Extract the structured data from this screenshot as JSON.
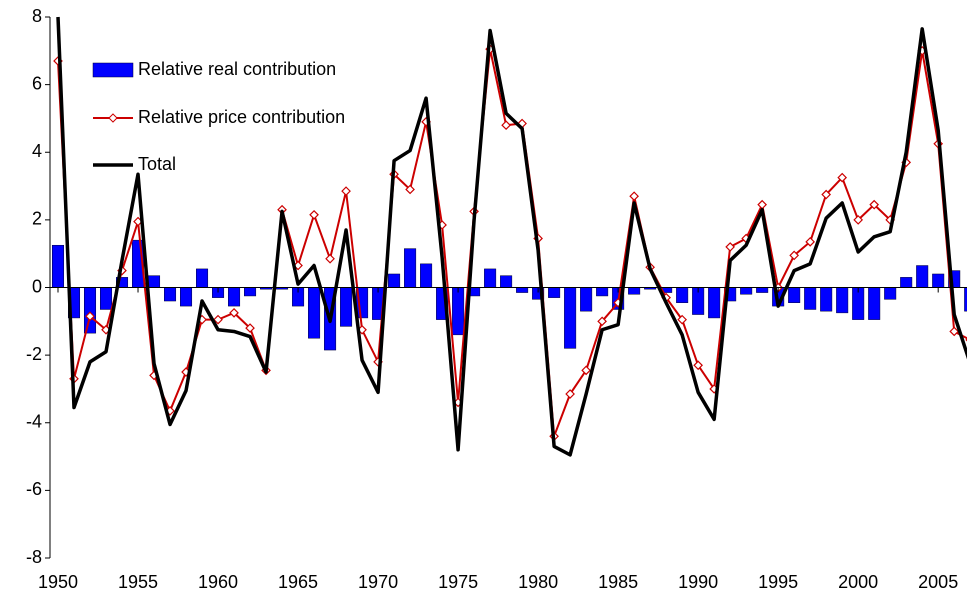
{
  "chart_data": {
    "type": "bar_line",
    "x": [
      1950,
      1951,
      1952,
      1953,
      1954,
      1955,
      1956,
      1957,
      1958,
      1959,
      1960,
      1961,
      1962,
      1963,
      1964,
      1965,
      1966,
      1967,
      1968,
      1969,
      1970,
      1971,
      1972,
      1973,
      1974,
      1975,
      1976,
      1977,
      1978,
      1979,
      1980,
      1981,
      1982,
      1983,
      1984,
      1985,
      1986,
      1987,
      1988,
      1989,
      1990,
      1991,
      1992,
      1993,
      1994,
      1995,
      1996,
      1997,
      1998,
      1999,
      2000,
      2001,
      2002,
      2003,
      2004,
      2005,
      2006,
      2007
    ],
    "series": [
      {
        "name": "Relative real contribution",
        "kind": "bar",
        "color": "#0000ff",
        "values": [
          1.25,
          -0.9,
          -1.35,
          -0.65,
          0.3,
          1.4,
          0.35,
          -0.4,
          -0.55,
          0.55,
          -0.3,
          -0.55,
          -0.25,
          -0.05,
          -0.05,
          -0.55,
          -1.5,
          -1.85,
          -1.15,
          -0.9,
          -0.95,
          0.4,
          1.15,
          0.7,
          -0.95,
          -1.4,
          -0.25,
          0.55,
          0.35,
          -0.15,
          -0.35,
          -0.3,
          -1.8,
          -0.7,
          -0.25,
          -0.65,
          -0.2,
          -0.05,
          -0.15,
          -0.45,
          -0.8,
          -0.9,
          -0.4,
          -0.2,
          -0.15,
          -0.55,
          -0.45,
          -0.65,
          -0.7,
          -0.75,
          -0.95,
          -0.95,
          -0.35,
          0.3,
          0.65,
          0.4,
          0.5,
          -0.7
        ]
      },
      {
        "name": "Relative price contribution",
        "kind": "line-marker",
        "color": "#cc0000",
        "values": [
          6.7,
          -2.7,
          -0.85,
          -1.25,
          0.5,
          1.95,
          -2.6,
          -3.65,
          -2.5,
          -0.95,
          -0.95,
          -0.75,
          -1.2,
          -2.45,
          2.3,
          0.65,
          2.15,
          0.85,
          2.85,
          -1.25,
          -2.2,
          3.35,
          2.9,
          4.9,
          1.85,
          -3.4,
          2.25,
          7.05,
          4.8,
          4.85,
          1.45,
          -4.4,
          -3.15,
          -2.45,
          -1.0,
          -0.45,
          2.7,
          0.6,
          -0.3,
          -0.95,
          -2.3,
          -3.0,
          1.2,
          1.45,
          2.45,
          0.0,
          0.95,
          1.35,
          2.75,
          3.25,
          2.0,
          2.45,
          2.0,
          3.7,
          7.0,
          4.25,
          -1.3,
          -1.55
        ]
      },
      {
        "name": "Total",
        "kind": "line",
        "color": "#000000",
        "values": [
          8.0,
          -3.55,
          -2.2,
          -1.9,
          0.8,
          3.35,
          -2.25,
          -4.05,
          -3.05,
          -0.4,
          -1.25,
          -1.3,
          -1.45,
          -2.5,
          2.25,
          0.1,
          0.65,
          -1.0,
          1.7,
          -2.15,
          -3.1,
          3.75,
          4.05,
          5.6,
          0.9,
          -4.8,
          2.0,
          7.6,
          5.15,
          4.7,
          1.1,
          -4.7,
          -4.95,
          -3.15,
          -1.25,
          -1.1,
          2.5,
          0.55,
          -0.45,
          -1.4,
          -3.1,
          -3.9,
          0.8,
          1.25,
          2.3,
          -0.55,
          0.5,
          0.7,
          2.05,
          2.5,
          1.05,
          1.5,
          1.65,
          4.0,
          7.65,
          4.65,
          -0.8,
          -2.25
        ]
      }
    ],
    "xlim": [
      1949.5,
      2006.8
    ],
    "xticks": [
      1950,
      1955,
      1960,
      1965,
      1970,
      1975,
      1980,
      1985,
      1990,
      1995,
      2000,
      2005
    ],
    "ylim": [
      -8,
      8
    ],
    "yticks": [
      -8,
      -6,
      -4,
      -2,
      0,
      2,
      4,
      6,
      8
    ],
    "legend": "upper left"
  }
}
